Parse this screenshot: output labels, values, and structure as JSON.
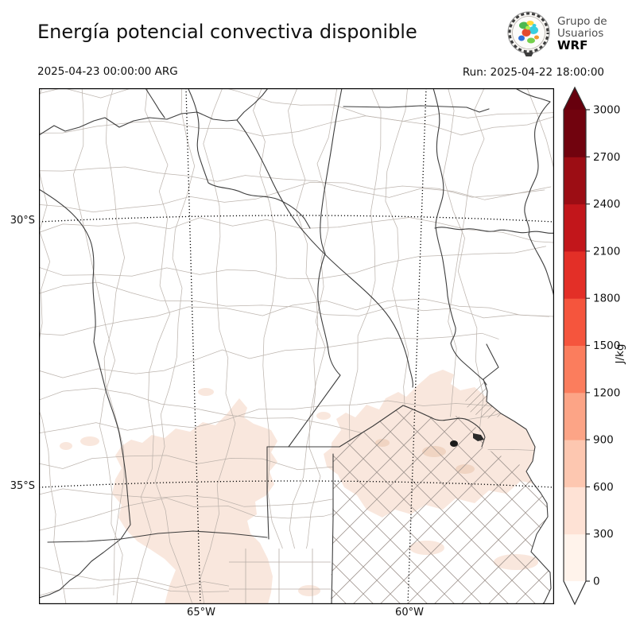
{
  "header": {
    "title": "Energía potencial convectiva disponible",
    "datetime": "2025-04-23 00:00:00 ARG",
    "run": "Run: 2025-04-22 18:00:00",
    "logo": {
      "line1": "Grupo de",
      "line2": "Usuarios",
      "line3": "WRF"
    }
  },
  "map": {
    "lat_labels": [
      {
        "label": "30°S"
      },
      {
        "label": "35°S"
      }
    ],
    "lon_labels": [
      {
        "label": "65°W"
      },
      {
        "label": "60°W"
      }
    ]
  },
  "colorbar": {
    "unit": "J/kg",
    "ticks": [
      "0",
      "300",
      "600",
      "900",
      "1200",
      "1500",
      "1800",
      "2100",
      "2400",
      "2700",
      "3000"
    ],
    "levels": [
      0,
      300,
      600,
      900,
      1200,
      1500,
      1800,
      2100,
      2400,
      2700,
      3000
    ],
    "colors": [
      "#fff3eb",
      "#fee2d5",
      "#fdc7b0",
      "#fca486",
      "#fb7d5d",
      "#f5553d",
      "#e32f27",
      "#c2161b",
      "#9c0d14",
      "#71030e"
    ],
    "over_color": "#67000d",
    "under_color": "#ffffff"
  },
  "shading": {
    "cape_low_fill": "#f9e7dd",
    "cape_mid_fill": "#f0d4c2"
  }
}
